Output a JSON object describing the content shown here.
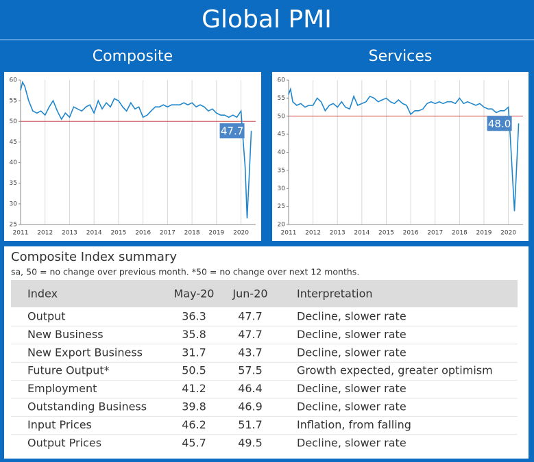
{
  "title": "Global PMI",
  "chart_data": [
    {
      "type": "line",
      "title": "Composite",
      "x": [
        2011.0,
        2011.08,
        2011.17,
        2011.33,
        2011.5,
        2011.67,
        2011.83,
        2012.0,
        2012.17,
        2012.33,
        2012.5,
        2012.67,
        2012.83,
        2013.0,
        2013.17,
        2013.33,
        2013.5,
        2013.67,
        2013.83,
        2014.0,
        2014.17,
        2014.33,
        2014.5,
        2014.67,
        2014.83,
        2015.0,
        2015.17,
        2015.33,
        2015.5,
        2015.67,
        2015.83,
        2016.0,
        2016.17,
        2016.33,
        2016.5,
        2016.67,
        2016.83,
        2017.0,
        2017.17,
        2017.33,
        2017.5,
        2017.67,
        2017.83,
        2018.0,
        2018.17,
        2018.33,
        2018.5,
        2018.67,
        2018.83,
        2019.0,
        2019.17,
        2019.33,
        2019.5,
        2019.67,
        2019.83,
        2020.0,
        2020.08,
        2020.17,
        2020.25,
        2020.33,
        2020.42
      ],
      "values": [
        57.5,
        59.5,
        58.5,
        55,
        52.5,
        52,
        52.5,
        51.5,
        53.5,
        55,
        52.5,
        50.5,
        52,
        51,
        53.5,
        53,
        52.5,
        53.5,
        54,
        52,
        55,
        53,
        54.5,
        53.5,
        55.5,
        55,
        53.5,
        52.5,
        54.5,
        53,
        53.5,
        51,
        51.5,
        52.5,
        53.5,
        53.5,
        54,
        53.5,
        54,
        54,
        54,
        54.5,
        54,
        54.5,
        53.5,
        54,
        53.5,
        52.5,
        53,
        52,
        51.5,
        51.5,
        51,
        51.5,
        51,
        52.5,
        46,
        39,
        26.5,
        36.3,
        47.7
      ],
      "color": "#1f86cc",
      "xlim": [
        2011,
        2020.6
      ],
      "xticks": [
        2011,
        2012,
        2013,
        2014,
        2015,
        2016,
        2017,
        2018,
        2019,
        2020
      ],
      "ylim": [
        25,
        60
      ],
      "yticks": [
        25,
        30,
        35,
        40,
        45,
        50,
        55,
        60
      ],
      "xgrid": true,
      "reference_line": {
        "value": 50,
        "color": "#d04848"
      },
      "annotation": {
        "value": 47.7,
        "label": "47.7"
      }
    },
    {
      "type": "line",
      "title": "Services",
      "x": [
        2011.0,
        2011.08,
        2011.17,
        2011.33,
        2011.5,
        2011.67,
        2011.83,
        2012.0,
        2012.17,
        2012.33,
        2012.5,
        2012.67,
        2012.83,
        2013.0,
        2013.17,
        2013.33,
        2013.5,
        2013.67,
        2013.83,
        2014.0,
        2014.17,
        2014.33,
        2014.5,
        2014.67,
        2014.83,
        2015.0,
        2015.17,
        2015.33,
        2015.5,
        2015.67,
        2015.83,
        2016.0,
        2016.17,
        2016.33,
        2016.5,
        2016.67,
        2016.83,
        2017.0,
        2017.17,
        2017.33,
        2017.5,
        2017.67,
        2017.83,
        2018.0,
        2018.17,
        2018.33,
        2018.5,
        2018.67,
        2018.83,
        2019.0,
        2019.17,
        2019.33,
        2019.5,
        2019.67,
        2019.83,
        2020.0,
        2020.08,
        2020.17,
        2020.25,
        2020.33,
        2020.42
      ],
      "values": [
        56,
        57.5,
        54,
        53,
        53.5,
        52.5,
        53,
        53,
        55,
        54,
        51.5,
        53,
        53.5,
        52.5,
        54,
        52.5,
        52,
        55.5,
        53,
        53.5,
        54,
        55.5,
        55,
        54,
        54.5,
        55,
        54,
        53.5,
        54.5,
        53.5,
        53,
        50.5,
        51.5,
        51.5,
        52,
        53.5,
        54,
        53.5,
        54,
        53.5,
        54,
        54,
        53.5,
        55,
        53.5,
        54,
        53.5,
        53,
        53.5,
        52.5,
        52,
        52,
        51,
        51.5,
        51.5,
        52.5,
        44,
        33,
        23.7,
        35,
        48
      ],
      "color": "#1f86cc",
      "xlim": [
        2011,
        2020.6
      ],
      "xticks": [
        2011,
        2012,
        2013,
        2014,
        2015,
        2016,
        2017,
        2018,
        2019,
        2020
      ],
      "ylim": [
        20,
        60
      ],
      "yticks": [
        20,
        25,
        30,
        35,
        40,
        45,
        50,
        55,
        60
      ],
      "xgrid": true,
      "reference_line": {
        "value": 50,
        "color": "#d04848"
      },
      "annotation": {
        "value": 48,
        "label": "48.0"
      }
    }
  ],
  "table": {
    "title": "Composite Index summary",
    "note": "sa, 50 = no change over previous month. *50 = no change over next 12 months.",
    "header": [
      "Index",
      "May-20",
      "Jun-20",
      "Interpretation"
    ],
    "rows": [
      [
        "Output",
        36.3,
        47.7,
        "Decline, slower rate"
      ],
      [
        "New Business",
        35.8,
        47.7,
        "Decline, slower rate"
      ],
      [
        "New Export Business",
        31.7,
        43.7,
        "Decline, slower rate"
      ],
      [
        "Future Output*",
        50.5,
        57.5,
        "Growth expected, greater optimism"
      ],
      [
        "Employment",
        41.2,
        46.4,
        "Decline, slower rate"
      ],
      [
        "Outstanding Business",
        39.8,
        46.9,
        "Decline, slower rate"
      ],
      [
        "Input Prices",
        46.2,
        51.7,
        "Inflation, from falling"
      ],
      [
        "Output Prices",
        45.7,
        49.5,
        "Decline, slower rate"
      ]
    ]
  }
}
